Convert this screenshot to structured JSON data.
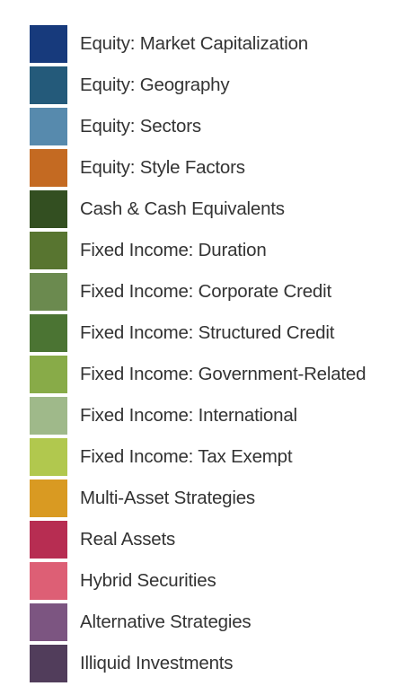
{
  "legend": {
    "items": [
      {
        "label": "Equity: Market Capitalization",
        "color": "#173a7c"
      },
      {
        "label": "Equity: Geography",
        "color": "#245a7a"
      },
      {
        "label": "Equity: Sectors",
        "color": "#578aad"
      },
      {
        "label": "Equity: Style Factors",
        "color": "#c46a22"
      },
      {
        "label": "Cash & Cash Equivalents",
        "color": "#334f21"
      },
      {
        "label": "Fixed Income: Duration",
        "color": "#587530"
      },
      {
        "label": "Fixed Income: Corporate Credit",
        "color": "#6b8a4f"
      },
      {
        "label": "Fixed Income: Structured Credit",
        "color": "#4b7433"
      },
      {
        "label": "Fixed Income: Government-Related",
        "color": "#88ab48"
      },
      {
        "label": "Fixed Income: International",
        "color": "#9fb98a"
      },
      {
        "label": "Fixed Income:  Tax Exempt",
        "color": "#b1c84e"
      },
      {
        "label": "Multi-Asset Strategies",
        "color": "#d99a22"
      },
      {
        "label": "Real Assets",
        "color": "#b72d52"
      },
      {
        "label": "Hybrid Securities",
        "color": "#dd5f75"
      },
      {
        "label": "Alternative Strategies",
        "color": "#7c5581"
      },
      {
        "label": "Illiquid Investments",
        "color": "#513d5b"
      }
    ]
  }
}
